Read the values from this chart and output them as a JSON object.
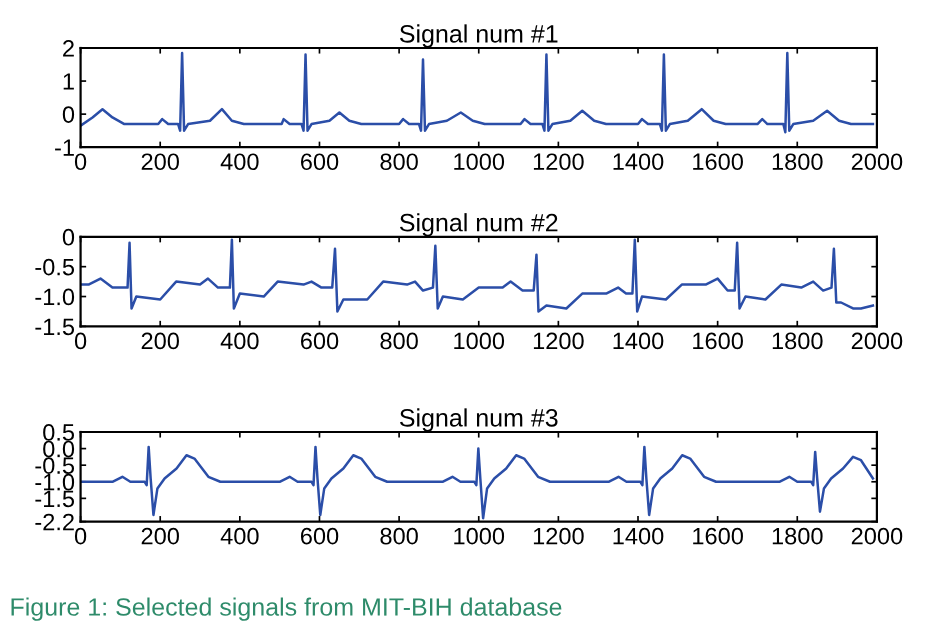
{
  "chart_data": [
    {
      "type": "line",
      "title": "Signal num #1",
      "xlim": [
        0,
        2000
      ],
      "ylim": [
        -1,
        2
      ],
      "xticks": [
        0,
        200,
        400,
        600,
        800,
        1000,
        1200,
        1400,
        1600,
        1800,
        2000
      ],
      "yticks": [
        -1,
        0,
        1,
        2
      ],
      "grid": false,
      "legend": false,
      "series": [
        {
          "color": "#2b4ea8",
          "x": [
            0,
            30,
            55,
            80,
            110,
            195,
            205,
            220,
            245,
            250,
            255,
            260,
            270,
            325,
            355,
            380,
            410,
            505,
            510,
            525,
            555,
            560,
            565,
            570,
            580,
            625,
            650,
            675,
            705,
            800,
            810,
            825,
            850,
            855,
            860,
            865,
            875,
            920,
            955,
            985,
            1015,
            1105,
            1115,
            1130,
            1160,
            1165,
            1170,
            1175,
            1185,
            1230,
            1260,
            1290,
            1320,
            1400,
            1410,
            1425,
            1455,
            1460,
            1465,
            1470,
            1480,
            1525,
            1560,
            1590,
            1620,
            1700,
            1712,
            1725,
            1765,
            1770,
            1775,
            1780,
            1790,
            1840,
            1875,
            1905,
            1935,
            1990
          ],
          "values": [
            -0.35,
            -0.1,
            0.15,
            -0.1,
            -0.3,
            -0.3,
            -0.15,
            -0.3,
            -0.3,
            -0.5,
            1.85,
            -0.5,
            -0.3,
            -0.2,
            0.15,
            -0.2,
            -0.3,
            -0.3,
            -0.15,
            -0.3,
            -0.3,
            -0.5,
            1.8,
            -0.5,
            -0.3,
            -0.2,
            0.05,
            -0.2,
            -0.3,
            -0.3,
            -0.15,
            -0.3,
            -0.3,
            -0.5,
            1.65,
            -0.5,
            -0.3,
            -0.2,
            0.05,
            -0.2,
            -0.3,
            -0.3,
            -0.15,
            -0.3,
            -0.3,
            -0.5,
            1.8,
            -0.5,
            -0.3,
            -0.2,
            0.1,
            -0.2,
            -0.3,
            -0.3,
            -0.15,
            -0.3,
            -0.3,
            -0.5,
            1.8,
            -0.5,
            -0.3,
            -0.2,
            0.15,
            -0.2,
            -0.3,
            -0.3,
            -0.15,
            -0.3,
            -0.3,
            -0.55,
            1.85,
            -0.5,
            -0.3,
            -0.2,
            0.1,
            -0.2,
            -0.3,
            -0.3
          ]
        }
      ]
    },
    {
      "type": "line",
      "title": "Signal num #2",
      "xlim": [
        0,
        2000
      ],
      "ylim": [
        -1.5,
        0
      ],
      "xticks": [
        0,
        200,
        400,
        600,
        800,
        1000,
        1200,
        1400,
        1600,
        1800,
        2000
      ],
      "yticks": [
        {
          "value": -1.5,
          "label": "-1.5"
        },
        {
          "value": -1.0,
          "label": "-1.0"
        },
        {
          "value": -0.5,
          "label": "-0.5"
        },
        0
      ],
      "grid": false,
      "legend": false,
      "series": [
        {
          "color": "#2b4ea8",
          "x": [
            0,
            20,
            50,
            80,
            118,
            123,
            128,
            140,
            200,
            240,
            300,
            320,
            345,
            375,
            380,
            385,
            400,
            460,
            495,
            560,
            580,
            605,
            632,
            639,
            645,
            660,
            720,
            760,
            820,
            840,
            860,
            885,
            891,
            897,
            910,
            960,
            1000,
            1060,
            1080,
            1110,
            1138,
            1145,
            1150,
            1170,
            1220,
            1260,
            1320,
            1350,
            1370,
            1386,
            1392,
            1398,
            1410,
            1470,
            1510,
            1570,
            1600,
            1625,
            1643,
            1649,
            1655,
            1670,
            1720,
            1760,
            1810,
            1840,
            1865,
            1886,
            1892,
            1898,
            1910,
            1940,
            1960,
            1990
          ],
          "values": [
            -0.8,
            -0.8,
            -0.7,
            -0.85,
            -0.85,
            -0.1,
            -1.2,
            -1.0,
            -1.05,
            -0.75,
            -0.8,
            -0.7,
            -0.85,
            -0.85,
            -0.05,
            -1.2,
            -0.95,
            -1.0,
            -0.75,
            -0.8,
            -0.75,
            -0.85,
            -0.85,
            -0.2,
            -1.25,
            -1.05,
            -1.05,
            -0.75,
            -0.8,
            -0.75,
            -0.9,
            -0.85,
            -0.15,
            -1.2,
            -1.0,
            -1.05,
            -0.85,
            -0.85,
            -0.75,
            -0.9,
            -0.9,
            -0.3,
            -1.25,
            -1.15,
            -1.2,
            -0.95,
            -0.95,
            -0.85,
            -0.95,
            -0.95,
            -0.05,
            -1.25,
            -1.0,
            -1.05,
            -0.8,
            -0.8,
            -0.7,
            -0.9,
            -0.9,
            -0.1,
            -1.2,
            -1.0,
            -1.05,
            -0.8,
            -0.85,
            -0.75,
            -0.9,
            -0.85,
            -0.2,
            -1.1,
            -1.1,
            -1.2,
            -1.2,
            -1.15
          ]
        }
      ]
    },
    {
      "type": "line",
      "title": "Signal num #3",
      "xlim": [
        0,
        2000
      ],
      "ylim": [
        -2.2,
        0.5
      ],
      "xticks": [
        0,
        200,
        400,
        600,
        800,
        1000,
        1200,
        1400,
        1600,
        1800,
        2000
      ],
      "yticks": [
        -2.2,
        {
          "value": -1.5,
          "label": "-1.5"
        },
        {
          "value": -1.0,
          "label": "-1.0"
        },
        {
          "value": -0.5,
          "label": "-0.5"
        },
        {
          "value": 0.0,
          "label": "0.0"
        },
        0.5
      ],
      "grid": false,
      "legend": false,
      "annotations": [
        "Figure 1: Selected signals from MIT-BIH database"
      ],
      "series": [
        {
          "color": "#2b4ea8",
          "x": [
            0,
            80,
            105,
            125,
            161,
            166,
            171,
            176,
            183,
            193,
            211,
            241,
            266,
            286,
            321,
            351,
            500,
            525,
            545,
            580,
            585,
            590,
            595,
            602,
            612,
            630,
            660,
            685,
            705,
            740,
            770,
            909,
            934,
            954,
            989,
            994,
            999,
            1004,
            1011,
            1021,
            1039,
            1069,
            1094,
            1114,
            1149,
            1179,
            1326,
            1351,
            1371,
            1406,
            1411,
            1416,
            1421,
            1428,
            1438,
            1456,
            1486,
            1511,
            1531,
            1566,
            1596,
            1755,
            1780,
            1800,
            1835,
            1840,
            1845,
            1850,
            1857,
            1867,
            1885,
            1915,
            1940,
            1960,
            1990
          ],
          "values": [
            -1.0,
            -1.0,
            -0.85,
            -1.0,
            -1.0,
            -1.1,
            0.05,
            -0.9,
            -2.0,
            -1.2,
            -0.9,
            -0.6,
            -0.2,
            -0.3,
            -0.85,
            -1.0,
            -1.0,
            -0.85,
            -1.0,
            -1.0,
            -1.1,
            0.05,
            -0.9,
            -2.0,
            -1.2,
            -0.9,
            -0.6,
            -0.2,
            -0.3,
            -0.85,
            -1.0,
            -1.0,
            -0.85,
            -1.0,
            -1.0,
            -1.1,
            0.0,
            -0.9,
            -2.1,
            -1.2,
            -0.9,
            -0.6,
            -0.2,
            -0.3,
            -0.85,
            -1.0,
            -1.0,
            -0.85,
            -1.0,
            -1.0,
            -1.1,
            0.05,
            -0.9,
            -2.0,
            -1.2,
            -0.9,
            -0.6,
            -0.2,
            -0.3,
            -0.85,
            -1.0,
            -1.0,
            -0.85,
            -1.0,
            -1.0,
            -1.1,
            -0.1,
            -0.9,
            -1.9,
            -1.2,
            -0.9,
            -0.6,
            -0.25,
            -0.35,
            -0.9
          ]
        }
      ]
    }
  ]
}
